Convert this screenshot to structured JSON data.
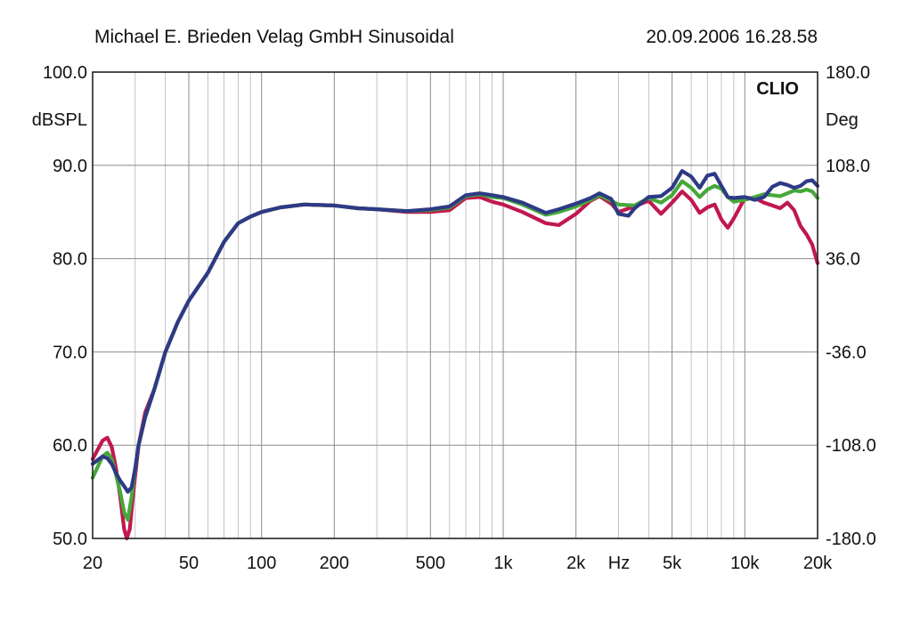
{
  "header": {
    "title": "Michael E. Brieden Velag GmbH Sinusoidal",
    "datetime": "20.09.2006 16.28.58"
  },
  "brand": "CLIO",
  "chart_data": {
    "type": "line",
    "xscale": "log",
    "xlim": [
      20,
      20000
    ],
    "ylim": [
      50,
      100
    ],
    "ylim_right": [
      -180,
      180
    ],
    "ylabel": "dBSPL",
    "ylabel_right": "Deg",
    "xunit_label": "Hz",
    "grid": true,
    "x_ticks": [
      {
        "v": 20,
        "label": "20"
      },
      {
        "v": 50,
        "label": "50"
      },
      {
        "v": 100,
        "label": "100"
      },
      {
        "v": 200,
        "label": "200"
      },
      {
        "v": 500,
        "label": "500"
      },
      {
        "v": 1000,
        "label": "1k"
      },
      {
        "v": 2000,
        "label": "2k"
      },
      {
        "v": 5000,
        "label": "5k"
      },
      {
        "v": 10000,
        "label": "10k"
      },
      {
        "v": 20000,
        "label": "20k"
      }
    ],
    "y_ticks": [
      {
        "v": 100,
        "label": "100.0"
      },
      {
        "v": 90,
        "label": "90.0"
      },
      {
        "v": 80,
        "label": "80.0"
      },
      {
        "v": 70,
        "label": "70.0"
      },
      {
        "v": 60,
        "label": "60.0"
      },
      {
        "v": 50,
        "label": "50.0"
      }
    ],
    "y_ticks_right": [
      {
        "v": 180,
        "label": "180.0"
      },
      {
        "v": 108,
        "label": "108.0"
      },
      {
        "v": 36,
        "label": "36.0"
      },
      {
        "v": -36,
        "label": "-36.0"
      },
      {
        "v": -108,
        "label": "-108.0"
      },
      {
        "v": -180,
        "label": "-180.0"
      }
    ],
    "series": [
      {
        "color": "#c0184f",
        "points": [
          [
            20,
            58.5
          ],
          [
            22,
            60.5
          ],
          [
            23,
            60.8
          ],
          [
            24,
            59.8
          ],
          [
            25,
            57.5
          ],
          [
            26,
            54.5
          ],
          [
            27,
            51
          ],
          [
            27.7,
            50
          ],
          [
            28.5,
            51
          ],
          [
            29.5,
            55
          ],
          [
            31,
            60
          ],
          [
            33,
            63.5
          ],
          [
            36,
            66
          ],
          [
            40,
            70
          ],
          [
            45,
            73.2
          ],
          [
            50,
            75.5
          ],
          [
            60,
            78.5
          ],
          [
            70,
            81.8
          ],
          [
            80,
            83.8
          ],
          [
            90,
            84.5
          ],
          [
            100,
            85
          ],
          [
            120,
            85.5
          ],
          [
            150,
            85.8
          ],
          [
            200,
            85.7
          ],
          [
            250,
            85.4
          ],
          [
            300,
            85.3
          ],
          [
            400,
            85
          ],
          [
            500,
            85
          ],
          [
            600,
            85.2
          ],
          [
            700,
            86.5
          ],
          [
            800,
            86.6
          ],
          [
            900,
            86.1
          ],
          [
            1000,
            85.8
          ],
          [
            1200,
            85
          ],
          [
            1500,
            83.8
          ],
          [
            1700,
            83.6
          ],
          [
            2000,
            84.8
          ],
          [
            2300,
            86.2
          ],
          [
            2500,
            86.7
          ],
          [
            2800,
            85.9
          ],
          [
            3000,
            85
          ],
          [
            3500,
            85.6
          ],
          [
            4000,
            86.2
          ],
          [
            4500,
            84.8
          ],
          [
            5000,
            86
          ],
          [
            5500,
            87.2
          ],
          [
            6000,
            86.3
          ],
          [
            6500,
            84.9
          ],
          [
            7000,
            85.5
          ],
          [
            7500,
            85.8
          ],
          [
            8000,
            84.2
          ],
          [
            8500,
            83.3
          ],
          [
            9000,
            84.3
          ],
          [
            10000,
            86.5
          ],
          [
            11000,
            86.5
          ],
          [
            12000,
            86
          ],
          [
            13000,
            85.7
          ],
          [
            14000,
            85.4
          ],
          [
            15000,
            86
          ],
          [
            16000,
            85.2
          ],
          [
            17000,
            83.5
          ],
          [
            18000,
            82.6
          ],
          [
            19000,
            81.5
          ],
          [
            20000,
            79.5
          ]
        ]
      },
      {
        "color": "#46a83a",
        "points": [
          [
            20,
            56.5
          ],
          [
            22,
            58.8
          ],
          [
            23,
            59.2
          ],
          [
            24,
            58.5
          ],
          [
            25,
            56.8
          ],
          [
            26,
            55
          ],
          [
            27,
            52.8
          ],
          [
            28,
            52
          ],
          [
            29,
            54.5
          ],
          [
            30,
            57.5
          ],
          [
            31,
            60
          ],
          [
            33,
            63
          ],
          [
            36,
            66
          ],
          [
            40,
            70
          ],
          [
            45,
            73.2
          ],
          [
            50,
            75.5
          ],
          [
            60,
            78.5
          ],
          [
            70,
            81.8
          ],
          [
            80,
            83.8
          ],
          [
            90,
            84.5
          ],
          [
            100,
            85
          ],
          [
            120,
            85.5
          ],
          [
            150,
            85.8
          ],
          [
            200,
            85.7
          ],
          [
            250,
            85.4
          ],
          [
            300,
            85.3
          ],
          [
            400,
            85.1
          ],
          [
            500,
            85.2
          ],
          [
            600,
            85.5
          ],
          [
            700,
            86.7
          ],
          [
            800,
            86.9
          ],
          [
            900,
            86.6
          ],
          [
            1000,
            86.5
          ],
          [
            1200,
            85.8
          ],
          [
            1500,
            84.7
          ],
          [
            1700,
            85
          ],
          [
            2000,
            85.6
          ],
          [
            2300,
            86.3
          ],
          [
            2500,
            86.8
          ],
          [
            2800,
            86.2
          ],
          [
            3000,
            85.8
          ],
          [
            3500,
            85.7
          ],
          [
            4000,
            86.5
          ],
          [
            4500,
            86
          ],
          [
            5000,
            86.8
          ],
          [
            5500,
            88.3
          ],
          [
            6000,
            87.6
          ],
          [
            6500,
            86.6
          ],
          [
            7000,
            87.4
          ],
          [
            7500,
            87.8
          ],
          [
            8000,
            87.5
          ],
          [
            8500,
            86.6
          ],
          [
            9000,
            86.1
          ],
          [
            10000,
            86.3
          ],
          [
            11000,
            86.6
          ],
          [
            12000,
            86.9
          ],
          [
            13000,
            86.8
          ],
          [
            14000,
            86.7
          ],
          [
            15000,
            87
          ],
          [
            16000,
            87.3
          ],
          [
            17000,
            87.2
          ],
          [
            18000,
            87.4
          ],
          [
            19000,
            87.2
          ],
          [
            20000,
            86.5
          ]
        ]
      },
      {
        "color": "#2e3a86",
        "points": [
          [
            20,
            58
          ],
          [
            22,
            58.8
          ],
          [
            23,
            58.6
          ],
          [
            24,
            58
          ],
          [
            25,
            57
          ],
          [
            26,
            56.2
          ],
          [
            27,
            55.6
          ],
          [
            28,
            55
          ],
          [
            29,
            55.5
          ],
          [
            30,
            57.5
          ],
          [
            31,
            60
          ],
          [
            33,
            63
          ],
          [
            36,
            66
          ],
          [
            40,
            70
          ],
          [
            45,
            73.2
          ],
          [
            50,
            75.5
          ],
          [
            60,
            78.5
          ],
          [
            70,
            81.8
          ],
          [
            80,
            83.8
          ],
          [
            90,
            84.5
          ],
          [
            100,
            85
          ],
          [
            120,
            85.5
          ],
          [
            150,
            85.8
          ],
          [
            200,
            85.7
          ],
          [
            250,
            85.4
          ],
          [
            300,
            85.3
          ],
          [
            400,
            85.1
          ],
          [
            500,
            85.3
          ],
          [
            600,
            85.6
          ],
          [
            700,
            86.8
          ],
          [
            800,
            87
          ],
          [
            900,
            86.8
          ],
          [
            1000,
            86.6
          ],
          [
            1200,
            86
          ],
          [
            1500,
            84.9
          ],
          [
            1700,
            85.3
          ],
          [
            2000,
            85.9
          ],
          [
            2300,
            86.5
          ],
          [
            2500,
            87
          ],
          [
            2800,
            86.4
          ],
          [
            3000,
            84.8
          ],
          [
            3300,
            84.6
          ],
          [
            3500,
            85.4
          ],
          [
            4000,
            86.6
          ],
          [
            4500,
            86.7
          ],
          [
            5000,
            87.6
          ],
          [
            5500,
            89.4
          ],
          [
            6000,
            88.8
          ],
          [
            6500,
            87.6
          ],
          [
            7000,
            88.9
          ],
          [
            7500,
            89.1
          ],
          [
            8000,
            87.8
          ],
          [
            8500,
            86.6
          ],
          [
            9000,
            86.5
          ],
          [
            10000,
            86.6
          ],
          [
            11000,
            86.3
          ],
          [
            12000,
            86.6
          ],
          [
            13000,
            87.7
          ],
          [
            14000,
            88.1
          ],
          [
            15000,
            87.9
          ],
          [
            16000,
            87.6
          ],
          [
            17000,
            87.8
          ],
          [
            18000,
            88.3
          ],
          [
            19000,
            88.4
          ],
          [
            20000,
            87.8
          ]
        ]
      }
    ]
  }
}
